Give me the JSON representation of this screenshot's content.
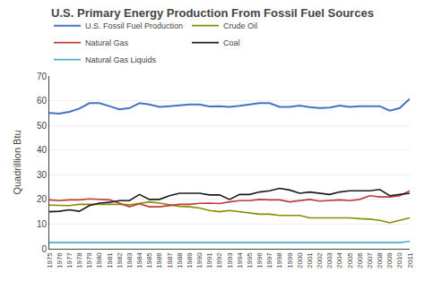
{
  "chart_data": {
    "type": "line",
    "title": "U.S. Primary Energy Production From Fossil Fuel Sources",
    "ylabel": "Quadrillion Btu",
    "x": [
      1975,
      1976,
      1977,
      1978,
      1979,
      1980,
      1981,
      1982,
      1983,
      1984,
      1985,
      1986,
      1987,
      1988,
      1989,
      1990,
      1991,
      1992,
      1993,
      1994,
      1995,
      1996,
      1997,
      1998,
      1999,
      2000,
      2001,
      2002,
      2003,
      2004,
      2005,
      2006,
      2007,
      2008,
      2009,
      2010,
      2011
    ],
    "series": [
      {
        "name": "U.S. Fossil Fuel Production",
        "color": "#4472C4",
        "values": [
          55.0,
          54.8,
          55.5,
          56.8,
          59.0,
          59.0,
          57.8,
          56.5,
          57.0,
          59.0,
          58.5,
          57.5,
          57.8,
          58.2,
          58.5,
          58.5,
          57.7,
          57.8,
          57.5,
          57.9,
          58.4,
          59.0,
          59.0,
          57.5,
          57.5,
          58.0,
          57.4,
          57.0,
          57.2,
          58.0,
          57.5,
          57.8,
          57.8,
          57.8,
          56.0,
          57.0,
          60.8
        ]
      },
      {
        "name": "Crude Oil",
        "color": "#8B8B00",
        "values": [
          17.7,
          17.5,
          17.5,
          18.0,
          18.0,
          18.2,
          18.0,
          18.0,
          17.8,
          18.5,
          19.0,
          18.5,
          17.8,
          17.2,
          17.0,
          16.5,
          15.5,
          15.0,
          15.5,
          15.0,
          14.5,
          14.0,
          14.0,
          13.5,
          13.5,
          13.5,
          12.5,
          12.5,
          12.5,
          12.5,
          12.5,
          12.2,
          12.0,
          11.5,
          10.5,
          11.5,
          12.5
        ]
      },
      {
        "name": "Natural Gas",
        "color": "#C0393B",
        "values": [
          19.8,
          19.5,
          19.8,
          19.8,
          20.2,
          20.0,
          19.8,
          18.5,
          17.0,
          18.2,
          17.0,
          17.0,
          17.5,
          18.0,
          18.0,
          18.4,
          18.5,
          18.3,
          19.0,
          19.5,
          19.5,
          20.0,
          19.8,
          19.8,
          19.0,
          19.5,
          20.0,
          19.3,
          19.5,
          19.8,
          19.5,
          20.0,
          21.5,
          21.0,
          21.0,
          21.5,
          23.5
        ]
      },
      {
        "name": "Coal",
        "color": "#1A1A1A",
        "values": [
          15.0,
          15.2,
          15.8,
          15.2,
          17.5,
          18.5,
          18.8,
          19.5,
          19.5,
          22.0,
          20.0,
          20.0,
          21.5,
          22.5,
          22.5,
          22.5,
          21.8,
          21.8,
          20.0,
          22.0,
          22.0,
          23.0,
          23.5,
          24.5,
          23.8,
          22.5,
          23.0,
          22.5,
          22.0,
          23.0,
          23.5,
          23.5,
          23.5,
          24.0,
          21.5,
          22.0,
          22.5
        ]
      },
      {
        "name": "Natural Gas Liquids",
        "color": "#4BACC6",
        "values": [
          2.5,
          2.5,
          2.5,
          2.4,
          2.4,
          2.4,
          2.4,
          2.3,
          2.3,
          2.4,
          2.4,
          2.4,
          2.4,
          2.4,
          2.4,
          2.5,
          2.5,
          2.5,
          2.5,
          2.5,
          2.5,
          2.5,
          2.5,
          2.5,
          2.5,
          2.5,
          2.5,
          2.4,
          2.4,
          2.5,
          2.5,
          2.4,
          2.4,
          2.5,
          2.5,
          2.5,
          3.0
        ]
      }
    ],
    "xlim": [
      1975,
      2011
    ],
    "xticks": [
      1975,
      1976,
      1977,
      1978,
      1979,
      1980,
      1981,
      1982,
      1983,
      1984,
      1985,
      1986,
      1987,
      1988,
      1989,
      1990,
      1991,
      1992,
      1993,
      1994,
      1995,
      1996,
      1997,
      1998,
      1999,
      2000,
      2001,
      2002,
      2003,
      2004,
      2005,
      2006,
      2007,
      2008,
      2009,
      2010,
      2011
    ],
    "ylim": [
      0,
      70
    ],
    "yticks": [
      0,
      10,
      20,
      30,
      40,
      50,
      60,
      70
    ],
    "grid": "y",
    "legend": "top"
  }
}
